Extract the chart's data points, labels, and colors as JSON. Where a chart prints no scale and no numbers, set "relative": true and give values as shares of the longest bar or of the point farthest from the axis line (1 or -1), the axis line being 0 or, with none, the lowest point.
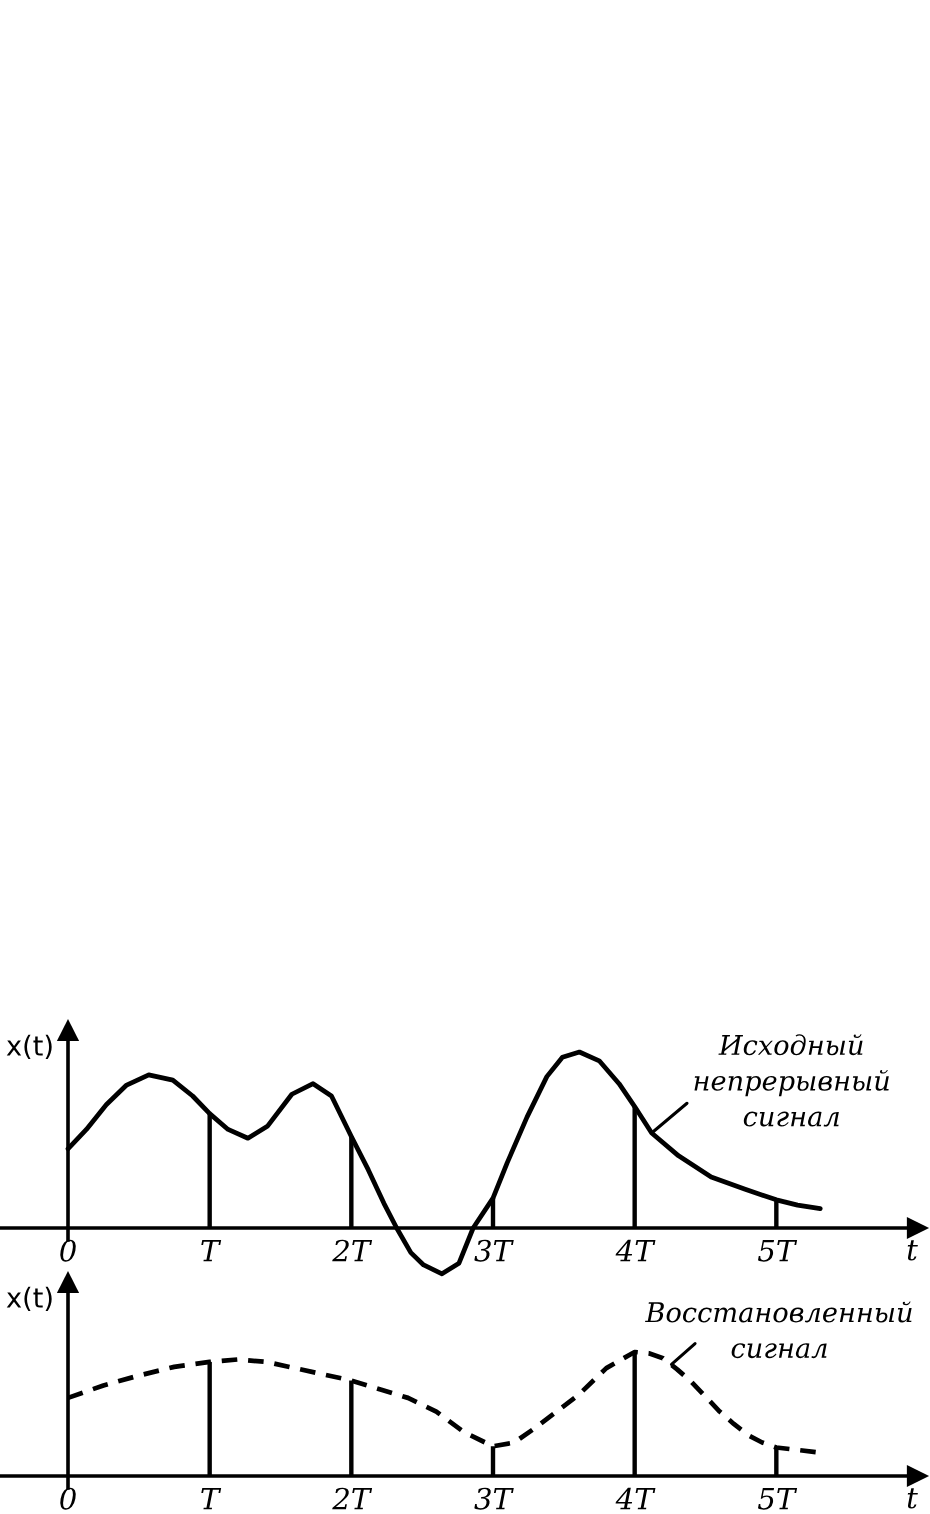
{
  "chart_data": [
    {
      "type": "line",
      "relative": true,
      "ylabel": "x(t)",
      "xlabel": "t",
      "marker": "none",
      "xlim": [
        -0.48,
        6.0
      ],
      "xticks": [
        {
          "value": 0,
          "label": "0"
        },
        {
          "value": 1,
          "label": "T"
        },
        {
          "value": 2,
          "label": "2T"
        },
        {
          "value": 3,
          "label": "3T"
        },
        {
          "value": 4,
          "label": "4T"
        },
        {
          "value": 5,
          "label": "5T"
        }
      ],
      "series": [
        {
          "color": "#000000",
          "line_style": "solid",
          "x": [
            0,
            0.13,
            0.27,
            0.41,
            0.57,
            0.74,
            0.88,
            1.0,
            1.13,
            1.27,
            1.41,
            1.58,
            1.73,
            1.86,
            2.0,
            2.12,
            2.23,
            2.32,
            2.42,
            2.51,
            2.64,
            2.76,
            2.86,
            3.0,
            3.1,
            3.24,
            3.38,
            3.49,
            3.61,
            3.75,
            3.89,
            4.0,
            4.12,
            4.31,
            4.54,
            4.78,
            5.0,
            5.15,
            5.31
          ],
          "values": [
            0.45,
            0.56,
            0.7,
            0.81,
            0.87,
            0.84,
            0.75,
            0.65,
            0.56,
            0.51,
            0.58,
            0.76,
            0.82,
            0.75,
            0.52,
            0.33,
            0.14,
            0,
            -0.14,
            -0.21,
            -0.26,
            -0.2,
            0,
            0.17,
            0.37,
            0.63,
            0.86,
            0.97,
            1.0,
            0.95,
            0.82,
            0.69,
            0.54,
            0.41,
            0.29,
            0.22,
            0.16,
            0.13,
            0.11
          ]
        },
        {
          "type": "bar",
          "color": "#000000",
          "x": [
            1,
            2,
            3,
            4,
            5
          ],
          "values": [
            0.65,
            0.52,
            0.17,
            0.69,
            0.16
          ]
        }
      ],
      "annotations": [
        {
          "text": "Исходный\nнепрерывный\nсигнал",
          "x": 4.12,
          "y": 0.54
        }
      ]
    },
    {
      "type": "line",
      "relative": true,
      "ylabel": "x(t)",
      "xlabel": "t",
      "marker": "none",
      "xlim": [
        -0.48,
        6.0
      ],
      "xticks": [
        {
          "value": 0,
          "label": "0"
        },
        {
          "value": 1,
          "label": "T"
        },
        {
          "value": 2,
          "label": "2T"
        },
        {
          "value": 3,
          "label": "3T"
        },
        {
          "value": 4,
          "label": "4T"
        },
        {
          "value": 5,
          "label": "5T"
        }
      ],
      "series": [
        {
          "color": "#000000",
          "line_style": "dashed",
          "x": [
            0,
            0.25,
            0.5,
            0.75,
            1.0,
            1.2,
            1.4,
            1.6,
            1.8,
            2.0,
            2.2,
            2.4,
            2.6,
            2.8,
            3.0,
            3.15,
            3.3,
            3.45,
            3.6,
            3.8,
            4.0,
            4.1,
            4.2,
            4.3,
            4.4,
            4.5,
            4.6,
            4.7,
            4.8,
            4.9,
            5.0,
            5.15,
            5.3
          ],
          "values": [
            0.63,
            0.73,
            0.81,
            0.88,
            0.92,
            0.94,
            0.92,
            0.87,
            0.82,
            0.77,
            0.7,
            0.63,
            0.52,
            0.35,
            0.24,
            0.27,
            0.39,
            0.52,
            0.65,
            0.87,
            1.0,
            0.99,
            0.95,
            0.86,
            0.76,
            0.64,
            0.52,
            0.42,
            0.33,
            0.27,
            0.23,
            0.21,
            0.19
          ]
        },
        {
          "type": "bar",
          "color": "#000000",
          "x": [
            1,
            2,
            3,
            4,
            5
          ],
          "values": [
            0.92,
            0.77,
            0.24,
            1.0,
            0.23
          ]
        }
      ],
      "annotations": [
        {
          "text": "Восстановленный\nсигнал",
          "x": 4.26,
          "y": 0.9
        }
      ]
    }
  ]
}
